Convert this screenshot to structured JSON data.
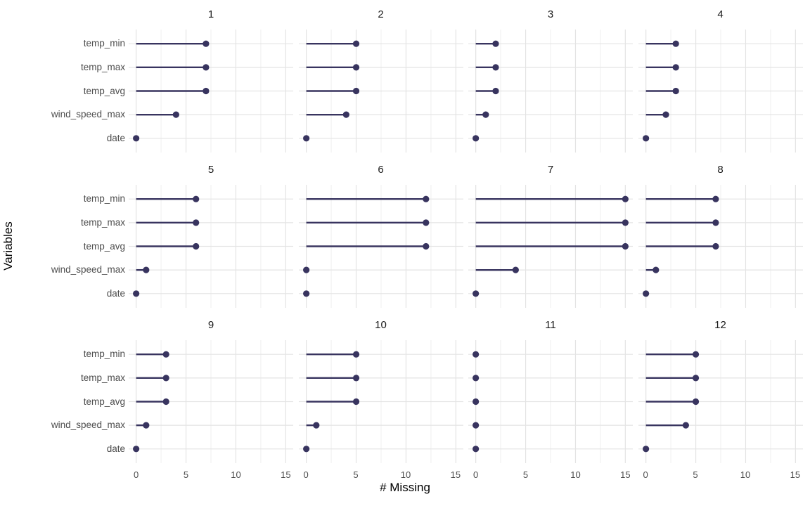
{
  "chart_data": {
    "type": "bar",
    "style": "horizontal-lollipop-small-multiples",
    "title": "",
    "xlabel": "# Missing",
    "ylabel": "Variables",
    "categories": [
      "temp_min",
      "temp_max",
      "temp_avg",
      "wind_speed_max",
      "date"
    ],
    "x_ticks": [
      0,
      5,
      10,
      15
    ],
    "x_minor_ticks": [
      2.5,
      7.5,
      12.5
    ],
    "xlim": [
      0,
      15
    ],
    "grid": true,
    "legend": "none",
    "facet_grid": {
      "rows": 3,
      "cols": 4
    },
    "facets": [
      {
        "label": "1",
        "values": [
          7,
          7,
          7,
          4,
          0
        ]
      },
      {
        "label": "2",
        "values": [
          5,
          5,
          5,
          4,
          0
        ]
      },
      {
        "label": "3",
        "values": [
          2,
          2,
          2,
          1,
          0
        ]
      },
      {
        "label": "4",
        "values": [
          3,
          3,
          3,
          2,
          0
        ]
      },
      {
        "label": "5",
        "values": [
          6,
          6,
          6,
          1,
          0
        ]
      },
      {
        "label": "6",
        "values": [
          12,
          12,
          12,
          0,
          0
        ]
      },
      {
        "label": "7",
        "values": [
          15,
          15,
          15,
          4,
          0
        ]
      },
      {
        "label": "8",
        "values": [
          7,
          7,
          7,
          1,
          0
        ]
      },
      {
        "label": "9",
        "values": [
          3,
          3,
          3,
          1,
          0
        ]
      },
      {
        "label": "10",
        "values": [
          5,
          5,
          5,
          1,
          0
        ]
      },
      {
        "label": "11",
        "values": [
          0,
          0,
          0,
          0,
          0
        ]
      },
      {
        "label": "12",
        "values": [
          5,
          5,
          5,
          4,
          0
        ]
      }
    ],
    "colors": {
      "point": "#38345f",
      "stem": "#38345f",
      "grid_major": "#e4e4e4",
      "grid_minor": "#efefef",
      "tick_label": "#4d4d4d",
      "facet_label": "#1a1a1a",
      "axis_title": "#000000",
      "background": "#ffffff"
    }
  }
}
